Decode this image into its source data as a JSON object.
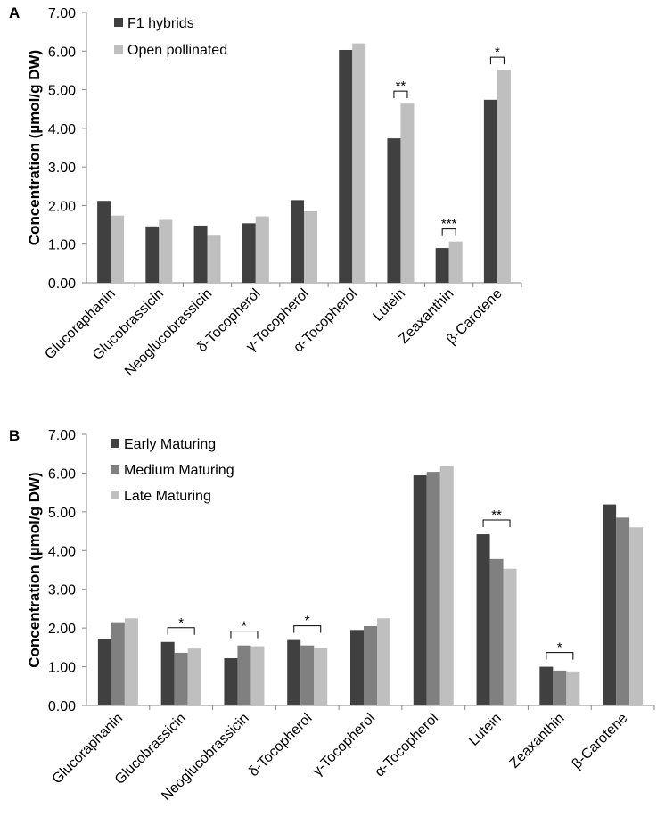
{
  "chart_data": [
    {
      "panel": "A",
      "type": "bar",
      "ylabel": "Concentration (µmol/g DW)",
      "ylim": [
        0,
        7
      ],
      "yticks": [
        "0.00",
        "1.00",
        "2.00",
        "3.00",
        "4.00",
        "5.00",
        "6.00",
        "7.00"
      ],
      "categories": [
        "Glucoraphanin",
        "Glucobrassicin",
        "Neoglucobrassicin",
        "δ-Tocopherol",
        "γ-Tocopherol",
        "α-Tocopherol",
        "Lutein",
        "Zeaxanthin",
        "β-Carotene"
      ],
      "series": [
        {
          "name": "F1 hybrids",
          "color": "#404040",
          "values": [
            2.12,
            1.46,
            1.48,
            1.54,
            2.14,
            6.03,
            3.74,
            0.9,
            4.74
          ]
        },
        {
          "name": "Open pollinated",
          "color": "#bfbfbf",
          "values": [
            1.74,
            1.63,
            1.22,
            1.72,
            1.85,
            6.2,
            4.64,
            1.07,
            5.52
          ]
        }
      ],
      "significance": [
        {
          "category": "Lutein",
          "label": "**"
        },
        {
          "category": "Zeaxanthin",
          "label": "***"
        },
        {
          "category": "β-Carotene",
          "label": "*"
        }
      ]
    },
    {
      "panel": "B",
      "type": "bar",
      "ylabel": "Concentration (µmol/g DW)",
      "ylim": [
        0,
        7
      ],
      "yticks": [
        "0.00",
        "1.00",
        "2.00",
        "3.00",
        "4.00",
        "5.00",
        "6.00",
        "7.00"
      ],
      "categories": [
        "Glucoraphanin",
        "Glucobrassicin",
        "Neoglucobrassicin",
        "δ-Tocopherol",
        "γ-Tocopherol",
        "α-Tocopherol",
        "Lutein",
        "Zeaxanthin",
        "β-Carotene"
      ],
      "series": [
        {
          "name": "Early Maturing",
          "color": "#404040",
          "values": [
            1.72,
            1.64,
            1.22,
            1.69,
            1.95,
            5.94,
            4.42,
            1.0,
            5.19
          ]
        },
        {
          "name": "Medium Maturing",
          "color": "#808080",
          "values": [
            2.15,
            1.36,
            1.55,
            1.55,
            2.05,
            6.03,
            3.78,
            0.9,
            4.85
          ]
        },
        {
          "name": "Late Maturing",
          "color": "#bfbfbf",
          "values": [
            2.25,
            1.47,
            1.53,
            1.48,
            2.25,
            6.18,
            3.53,
            0.88,
            4.6
          ]
        }
      ],
      "significance": [
        {
          "category": "Glucobrassicin",
          "label": "*"
        },
        {
          "category": "Neoglucobrassicin",
          "label": "*"
        },
        {
          "category": "δ-Tocopherol",
          "label": "*"
        },
        {
          "category": "Lutein",
          "label": "**"
        },
        {
          "category": "Zeaxanthin",
          "label": "*"
        }
      ]
    }
  ]
}
